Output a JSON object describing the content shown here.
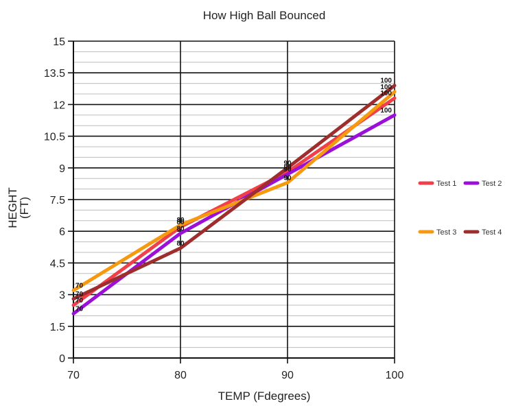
{
  "chart_data": {
    "type": "line",
    "title": "How High Ball Bounced",
    "xlabel": "TEMP (Fdegrees)",
    "ylabel": [
      "HEGHT",
      "(FT)"
    ],
    "x": [
      70,
      80,
      90,
      100
    ],
    "xticks": [
      "70",
      "80",
      "90",
      "100"
    ],
    "yticks": [
      "0",
      "1.5",
      "3",
      "4.5",
      "6",
      "7.5",
      "9",
      "10.5",
      "12",
      "13.5",
      "15"
    ],
    "xlim": [
      70,
      100
    ],
    "ylim": [
      0,
      15
    ],
    "grid": true,
    "legend_position": "right",
    "series": [
      {
        "name": "Test 1",
        "color": "#f0404a",
        "values": [
          2.5,
          6.2,
          8.8,
          12.3
        ],
        "labels": [
          "70",
          "80",
          "90",
          "100"
        ]
      },
      {
        "name": "Test 2",
        "color": "#9a10d8",
        "values": [
          2.1,
          5.9,
          8.7,
          11.5
        ],
        "labels": [
          "70",
          "80",
          "90",
          "100"
        ]
      },
      {
        "name": "Test 3",
        "color": "#f59a10",
        "values": [
          3.2,
          6.3,
          8.3,
          12.6
        ],
        "labels": [
          "70",
          "80",
          "90",
          "100"
        ]
      },
      {
        "name": "Test 4",
        "color": "#9e2e2e",
        "values": [
          2.8,
          5.2,
          9.0,
          12.9
        ],
        "labels": [
          "70",
          "80",
          "90",
          "100"
        ]
      }
    ]
  }
}
